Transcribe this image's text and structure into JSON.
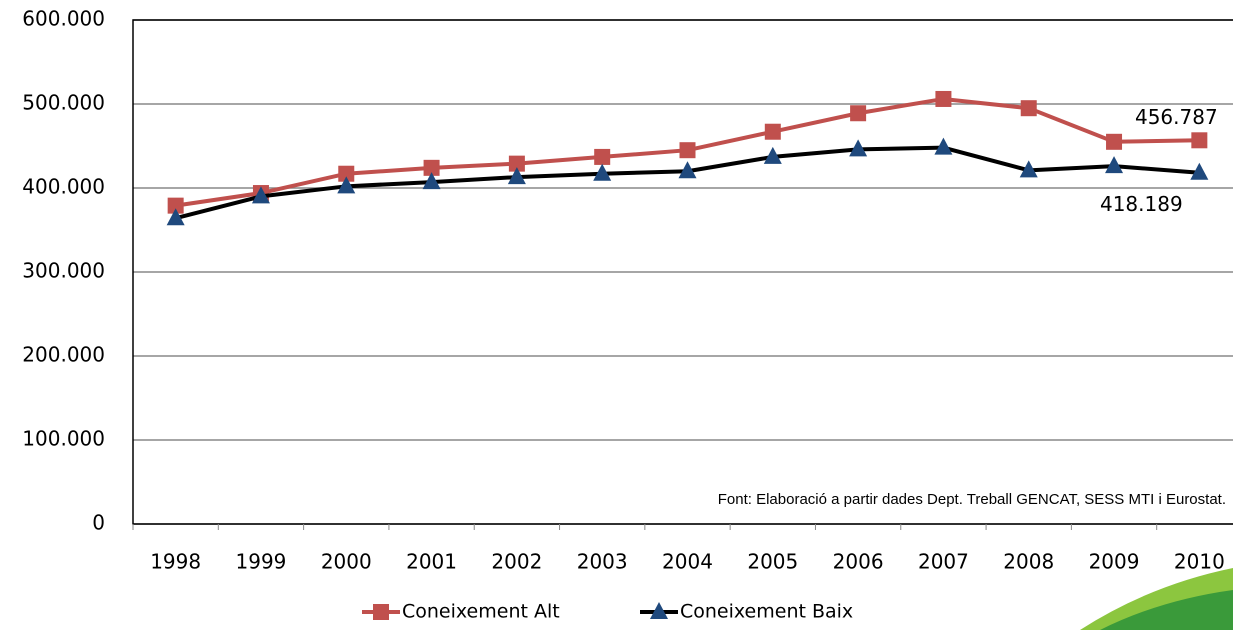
{
  "chart_data": {
    "type": "line",
    "annotation": "Font: Elaboració a partir dades Dept. Treball GENCAT, SESS MTI i Eurostat.",
    "categories": [
      "1998",
      "1999",
      "2000",
      "2001",
      "2002",
      "2003",
      "2004",
      "2005",
      "2006",
      "2007",
      "2008",
      "2009",
      "2010"
    ],
    "series": [
      {
        "name": "Coneixement Alt",
        "color": "#c0504d",
        "marker": "square",
        "values": [
          379000,
          394000,
          417000,
          424000,
          429000,
          437000,
          445000,
          467000,
          489000,
          506000,
          495000,
          455000,
          456787
        ],
        "value_labels": [
          null,
          null,
          null,
          null,
          null,
          null,
          null,
          null,
          null,
          null,
          null,
          null,
          "456.787"
        ]
      },
      {
        "name": "Coneixement Baix",
        "color": "#000000",
        "marker_color": "#1f497d",
        "marker": "triangle",
        "values": [
          364000,
          390000,
          402000,
          407000,
          413000,
          417000,
          420000,
          437000,
          446000,
          448000,
          421000,
          426000,
          418189
        ],
        "value_labels": [
          null,
          null,
          null,
          null,
          null,
          null,
          null,
          null,
          null,
          null,
          null,
          null,
          "418.189"
        ]
      }
    ],
    "ylim": [
      0,
      600000
    ],
    "yticks": [
      0,
      {
        "value": 100000,
        "label": "100.000"
      },
      {
        "value": 200000,
        "label": "200.000"
      },
      {
        "value": 300000,
        "label": "300.000"
      },
      {
        "value": 400000,
        "label": "400.000"
      },
      {
        "value": 500000,
        "label": "500.000"
      },
      {
        "value": 600000,
        "label": "600.000"
      }
    ],
    "grid": true
  }
}
